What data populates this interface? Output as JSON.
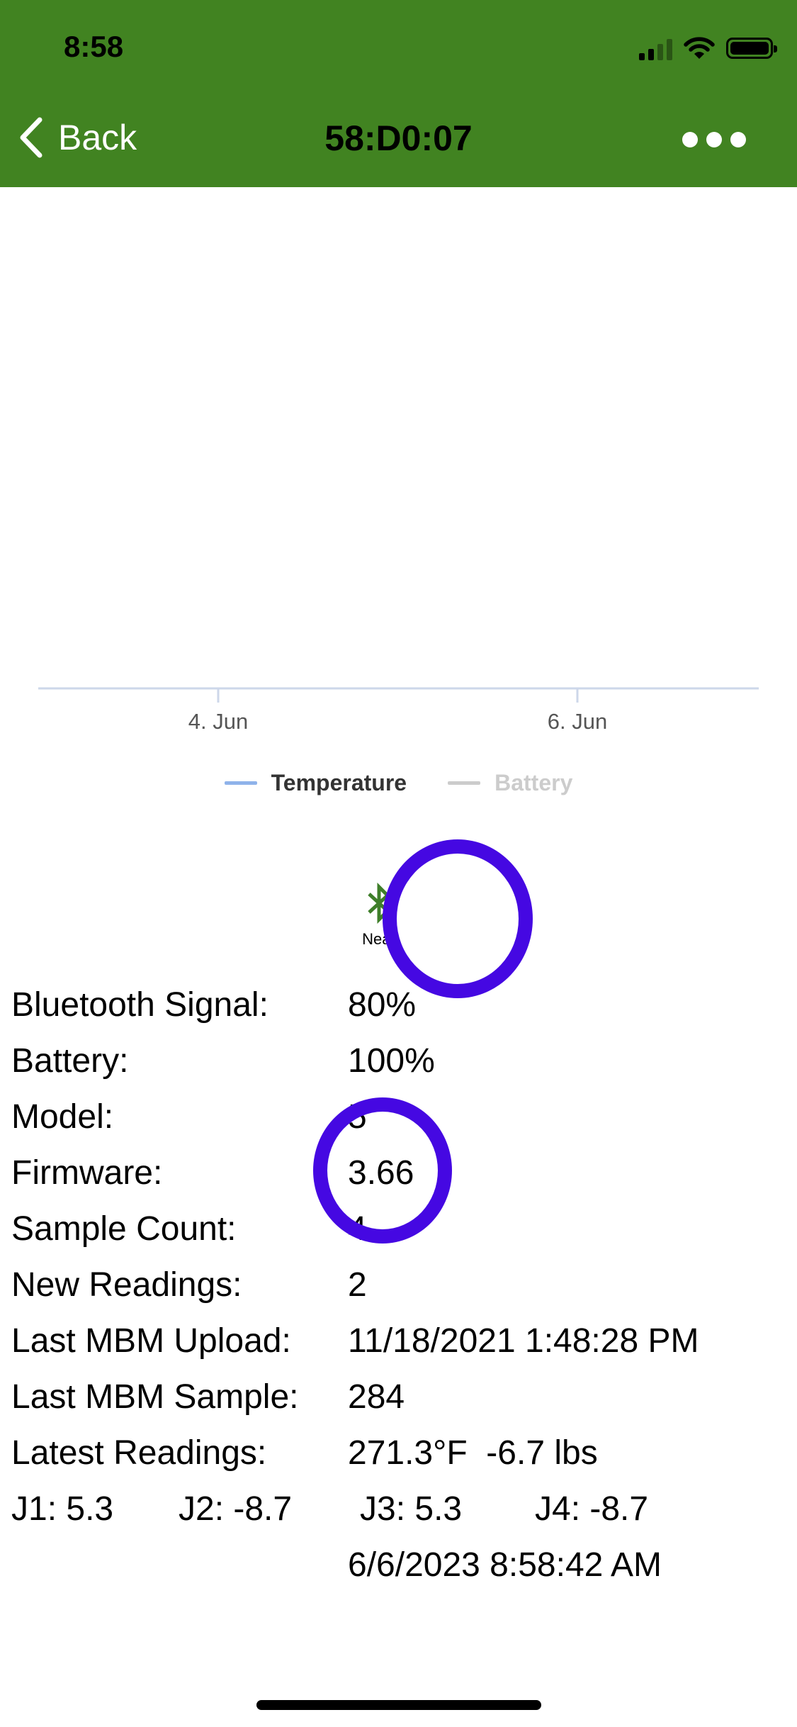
{
  "status_bar": {
    "time": "8:58"
  },
  "nav": {
    "back_label": "Back",
    "title": "58:D0:07"
  },
  "chart_data": {
    "type": "line",
    "x_tick_labels": [
      "4. Jun",
      "6. Jun"
    ],
    "series": [
      {
        "name": "Temperature",
        "color": "#8fb3ea",
        "visible": true,
        "values": []
      },
      {
        "name": "Battery",
        "color": "#cccccc",
        "visible": false,
        "values": []
      }
    ],
    "grid": false,
    "legend_position": "bottom"
  },
  "bluetooth": {
    "label": "Near"
  },
  "info": {
    "rows": [
      {
        "label": "Bluetooth Signal:",
        "value": "80%"
      },
      {
        "label": "Battery:",
        "value": "100%"
      },
      {
        "label": "Model:",
        "value": "5"
      },
      {
        "label": "Firmware:",
        "value": "3.66"
      },
      {
        "label": "Sample Count:",
        "value": "4"
      },
      {
        "label": "New Readings:",
        "value": "2"
      },
      {
        "label": "Last MBM Upload:",
        "value": "11/18/2021 1:48:28 PM"
      },
      {
        "label": "Last MBM Sample:",
        "value": "284"
      },
      {
        "label": "Latest Readings:",
        "value": "271.3°F  -6.7 lbs"
      }
    ],
    "joints": {
      "j1": "J1: 5.3",
      "j2": "J2: -8.7",
      "j3": "J3: 5.3",
      "j4": "J4: -8.7"
    },
    "timestamp": "6/6/2023 8:58:42 AM"
  },
  "colors": {
    "header": "#418321",
    "annotation_ring": "#4508e2",
    "bluetooth_icon": "#3f7f2a"
  }
}
